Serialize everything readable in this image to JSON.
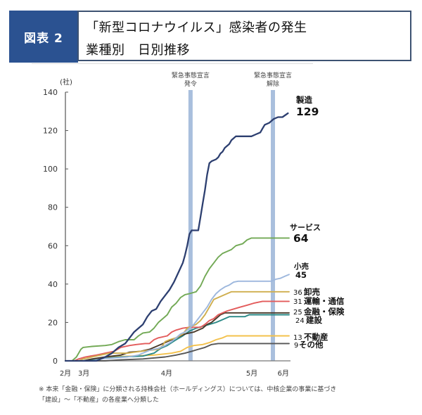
{
  "header": {
    "badge": "図表 2",
    "title_line1": "「新型コロナウイルス」感染者の発生",
    "title_line2": "業種別　日別推移",
    "badge_color": "#2b5291"
  },
  "chart_data": {
    "type": "line",
    "title": "「新型コロナウイルス」感染者の発生 業種別 日別推移",
    "xlabel": "",
    "ylabel": "(社)",
    "x_unit": "time index (Feb–early June, approx. days)",
    "xlim": [
      0,
      101
    ],
    "ylim": [
      0,
      140
    ],
    "y_ticks": [
      0,
      20,
      40,
      60,
      80,
      100,
      120,
      140
    ],
    "x_ticks": [
      {
        "label": "2月",
        "t": 0
      },
      {
        "label": "3月",
        "t": 8.3
      },
      {
        "label": "4月",
        "t": 45.7
      },
      {
        "label": "5月",
        "t": 84.2
      },
      {
        "label": "6月",
        "t": 98.4
      }
    ],
    "grid": false,
    "legend": "direct labels at line ends (right)",
    "events": [
      {
        "label_line1": "緊急事態宣言",
        "label_line2": "発令",
        "t": 56.5,
        "color": "#a9bfdd"
      },
      {
        "label_line1": "緊急事態宣言",
        "label_line2": "解除",
        "t": 93.7,
        "color": "#a9bfdd"
      }
    ],
    "series": [
      {
        "name": "製造",
        "end_value": "129",
        "color": "#2d3f70",
        "points": [
          [
            0,
            0
          ],
          [
            14,
            0
          ],
          [
            18,
            2
          ],
          [
            21,
            4
          ],
          [
            24,
            7
          ],
          [
            27,
            9
          ],
          [
            29,
            12
          ],
          [
            31,
            15
          ],
          [
            33,
            17
          ],
          [
            35,
            19
          ],
          [
            37,
            23
          ],
          [
            39,
            26
          ],
          [
            41,
            27
          ],
          [
            43,
            31
          ],
          [
            45,
            34
          ],
          [
            47,
            37
          ],
          [
            49,
            41
          ],
          [
            51,
            46
          ],
          [
            53,
            51
          ],
          [
            54,
            55
          ],
          [
            55,
            60
          ],
          [
            56,
            66
          ],
          [
            57,
            68
          ],
          [
            60,
            68
          ],
          [
            61,
            75
          ],
          [
            62,
            82
          ],
          [
            63,
            89
          ],
          [
            64,
            97
          ],
          [
            65,
            103
          ],
          [
            66,
            104
          ],
          [
            68,
            105
          ],
          [
            69,
            106
          ],
          [
            70,
            108
          ],
          [
            71,
            109
          ],
          [
            72,
            111
          ],
          [
            74,
            113
          ],
          [
            75,
            115
          ],
          [
            77,
            117
          ],
          [
            84,
            117
          ],
          [
            86,
            118
          ],
          [
            88,
            119
          ],
          [
            89,
            121
          ],
          [
            90,
            123
          ],
          [
            92,
            124
          ],
          [
            94,
            126
          ],
          [
            96,
            127
          ],
          [
            98,
            127
          ],
          [
            100.5,
            129
          ]
        ]
      },
      {
        "name": "サービス",
        "end_value": "64",
        "color": "#72a955",
        "points": [
          [
            0,
            0
          ],
          [
            3,
            0
          ],
          [
            5,
            2
          ],
          [
            7,
            6
          ],
          [
            8,
            7
          ],
          [
            12,
            7.5
          ],
          [
            18,
            8
          ],
          [
            21,
            8.5
          ],
          [
            24,
            10
          ],
          [
            27,
            11
          ],
          [
            31,
            11
          ],
          [
            33,
            13
          ],
          [
            35,
            14.5
          ],
          [
            38,
            15
          ],
          [
            40,
            17
          ],
          [
            42,
            20
          ],
          [
            44,
            22
          ],
          [
            46,
            24
          ],
          [
            48,
            28
          ],
          [
            50,
            30
          ],
          [
            52,
            33
          ],
          [
            54,
            34.5
          ],
          [
            56,
            35
          ],
          [
            59,
            36
          ],
          [
            61,
            39
          ],
          [
            63,
            44
          ],
          [
            65,
            48
          ],
          [
            67,
            51
          ],
          [
            69,
            54
          ],
          [
            71,
            56
          ],
          [
            73,
            57
          ],
          [
            75,
            58
          ],
          [
            77,
            60
          ],
          [
            80,
            61
          ],
          [
            82,
            63
          ],
          [
            84,
            64
          ],
          [
            101,
            64
          ]
        ]
      },
      {
        "name": "小売",
        "end_value": "45",
        "color": "#9db7dd",
        "points": [
          [
            0,
            0
          ],
          [
            12,
            0
          ],
          [
            16,
            1
          ],
          [
            22,
            1.5
          ],
          [
            28,
            2
          ],
          [
            33,
            3
          ],
          [
            38,
            5.5
          ],
          [
            42,
            6.5
          ],
          [
            45,
            8
          ],
          [
            48,
            10
          ],
          [
            50,
            12
          ],
          [
            52,
            14
          ],
          [
            54,
            15
          ],
          [
            56,
            17
          ],
          [
            58,
            19
          ],
          [
            60,
            22
          ],
          [
            62,
            25
          ],
          [
            64,
            28
          ],
          [
            66,
            32
          ],
          [
            68,
            35
          ],
          [
            70,
            37
          ],
          [
            72,
            38.5
          ],
          [
            74,
            39.5
          ],
          [
            76,
            41
          ],
          [
            78,
            41.5
          ],
          [
            93,
            41.5
          ],
          [
            95,
            42.5
          ],
          [
            97,
            43
          ],
          [
            99,
            44
          ],
          [
            101,
            45
          ]
        ]
      },
      {
        "name": "卸売",
        "end_value": "36",
        "color": "#cfae4e",
        "points": [
          [
            0,
            0
          ],
          [
            6,
            0
          ],
          [
            8,
            1
          ],
          [
            12,
            2
          ],
          [
            16,
            3
          ],
          [
            20,
            4
          ],
          [
            28,
            4
          ],
          [
            34,
            5
          ],
          [
            38,
            5.5
          ],
          [
            42,
            6
          ],
          [
            44,
            8
          ],
          [
            45,
            10
          ],
          [
            47,
            11
          ],
          [
            50,
            12
          ],
          [
            53,
            14
          ],
          [
            55,
            17
          ],
          [
            57,
            18
          ],
          [
            59,
            19
          ],
          [
            61,
            21
          ],
          [
            63,
            24
          ],
          [
            65,
            28
          ],
          [
            67,
            32
          ],
          [
            69,
            33
          ],
          [
            71,
            34
          ],
          [
            73,
            35
          ],
          [
            75,
            36
          ],
          [
            101,
            36
          ]
        ]
      },
      {
        "name": "運輸・通信",
        "end_value": "31",
        "color": "#e35b5b",
        "points": [
          [
            0,
            0
          ],
          [
            4,
            0
          ],
          [
            6,
            1
          ],
          [
            9,
            2
          ],
          [
            14,
            3
          ],
          [
            18,
            4
          ],
          [
            22,
            5
          ],
          [
            25,
            7
          ],
          [
            29,
            8
          ],
          [
            32,
            8.5
          ],
          [
            36,
            9
          ],
          [
            38,
            9
          ],
          [
            40,
            11
          ],
          [
            42,
            12
          ],
          [
            46,
            13
          ],
          [
            48,
            15
          ],
          [
            50,
            16
          ],
          [
            53,
            17
          ],
          [
            56,
            17.5
          ],
          [
            61,
            17.5
          ],
          [
            63,
            19
          ],
          [
            65,
            21
          ],
          [
            67,
            22
          ],
          [
            69,
            24
          ],
          [
            71,
            25
          ],
          [
            73,
            26
          ],
          [
            76,
            27
          ],
          [
            79,
            28
          ],
          [
            82,
            29
          ],
          [
            85,
            30
          ],
          [
            89,
            31
          ],
          [
            101,
            31
          ]
        ]
      },
      {
        "name": "金融・保険",
        "end_value": "25",
        "color": "#4b3b2c",
        "points": [
          [
            0,
            0
          ],
          [
            8,
            0
          ],
          [
            12,
            1
          ],
          [
            18,
            2
          ],
          [
            25,
            3
          ],
          [
            29,
            4.5
          ],
          [
            34,
            5
          ],
          [
            38,
            6
          ],
          [
            42,
            8
          ],
          [
            46,
            10
          ],
          [
            50,
            12
          ],
          [
            54,
            14
          ],
          [
            58,
            15
          ],
          [
            60,
            16
          ],
          [
            62,
            17
          ],
          [
            64,
            19
          ],
          [
            66,
            20
          ],
          [
            68,
            22
          ],
          [
            70,
            24
          ],
          [
            72,
            25
          ],
          [
            101,
            25
          ]
        ]
      },
      {
        "name": "建設",
        "end_value": "24",
        "color": "#2b8a87",
        "points": [
          [
            0,
            0
          ],
          [
            10,
            0
          ],
          [
            15,
            1
          ],
          [
            25,
            2
          ],
          [
            35,
            2.5
          ],
          [
            40,
            4
          ],
          [
            43,
            6.5
          ],
          [
            46,
            8
          ],
          [
            50,
            11
          ],
          [
            53,
            13
          ],
          [
            56,
            15.5
          ],
          [
            59,
            17
          ],
          [
            62,
            18
          ],
          [
            65,
            19
          ],
          [
            68,
            20
          ],
          [
            70,
            21
          ],
          [
            72,
            22
          ],
          [
            74,
            23
          ],
          [
            81,
            23
          ],
          [
            83,
            24
          ],
          [
            101,
            24
          ]
        ]
      },
      {
        "name": "不動産",
        "end_value": "13",
        "color": "#f3c14c",
        "points": [
          [
            0,
            0
          ],
          [
            10,
            0
          ],
          [
            14,
            1
          ],
          [
            20,
            2
          ],
          [
            30,
            2.5
          ],
          [
            40,
            3
          ],
          [
            48,
            4
          ],
          [
            52,
            5
          ],
          [
            55,
            7
          ],
          [
            58,
            8
          ],
          [
            62,
            8.5
          ],
          [
            65,
            9.5
          ],
          [
            68,
            11
          ],
          [
            71,
            12
          ],
          [
            73,
            13
          ],
          [
            101,
            13
          ]
        ]
      },
      {
        "name": "その他",
        "end_value": "9",
        "color": "#565656",
        "points": [
          [
            0,
            0
          ],
          [
            18,
            0
          ],
          [
            25,
            0.5
          ],
          [
            35,
            1
          ],
          [
            45,
            2
          ],
          [
            50,
            3
          ],
          [
            54,
            4
          ],
          [
            57,
            5
          ],
          [
            60,
            6
          ],
          [
            63,
            7
          ],
          [
            66,
            8.5
          ],
          [
            69,
            9
          ],
          [
            101,
            9
          ]
        ]
      }
    ]
  },
  "footnote": {
    "lines": [
      "※ 本来「金融・保険」に分類される持株会社（ホールディングス）については、中核企業の事業に基づき",
      "「建設」～「不動産」の各産業へ分類した"
    ]
  }
}
